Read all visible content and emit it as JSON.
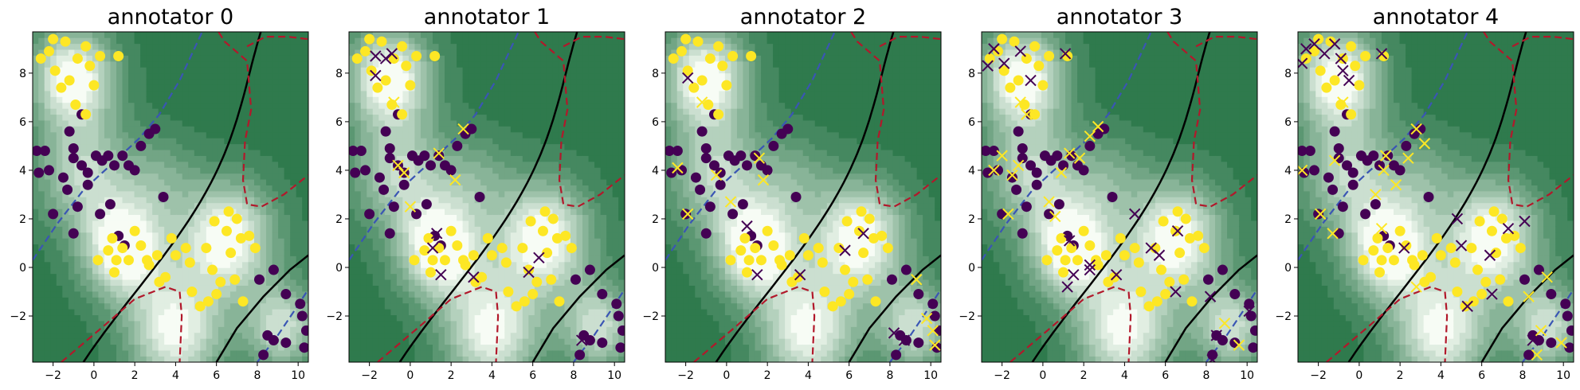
{
  "chart_data": {
    "type": "scatter",
    "x_ticks": [
      -2,
      0,
      2,
      4,
      6,
      8,
      10
    ],
    "y_ticks": [
      -2,
      0,
      2,
      4,
      6,
      8
    ],
    "xlim": [
      -3.0,
      10.5
    ],
    "ylim": [
      -3.9,
      9.7
    ],
    "grid": false,
    "colors": {
      "class0": "#440154",
      "class1": "#fde725",
      "boundary": "#000000",
      "blue_dashed": "#3a55b4",
      "red_dashed": "#b2182b",
      "contour_light": "#f7fcf5",
      "contour_dark": "#2f7a4d"
    },
    "points_class0": [
      [
        -2.8,
        4.8
      ],
      [
        -2.4,
        4.8
      ],
      [
        -2.7,
        3.9
      ],
      [
        -2.2,
        4.0
      ],
      [
        -2.0,
        2.2
      ],
      [
        -1.5,
        3.7
      ],
      [
        -1.3,
        3.2
      ],
      [
        -1.0,
        4.5
      ],
      [
        -0.6,
        4.2
      ],
      [
        -0.3,
        3.9
      ],
      [
        0.1,
        4.6
      ],
      [
        0.4,
        4.4
      ],
      [
        0.7,
        4.6
      ],
      [
        1.0,
        4.2
      ],
      [
        1.4,
        4.6
      ],
      [
        1.7,
        4.2
      ],
      [
        2.0,
        4.0
      ],
      [
        -0.8,
        2.5
      ],
      [
        -1.0,
        1.4
      ],
      [
        -1.2,
        5.6
      ],
      [
        -0.6,
        6.3
      ],
      [
        -1.0,
        4.9
      ],
      [
        2.3,
        5.0
      ],
      [
        2.7,
        5.5
      ],
      [
        3.0,
        5.7
      ],
      [
        1.2,
        1.3
      ],
      [
        1.5,
        0.9
      ],
      [
        3.4,
        2.9
      ],
      [
        0.8,
        2.6
      ],
      [
        0.3,
        2.2
      ],
      [
        -0.3,
        3.4
      ],
      [
        8.5,
        -2.8
      ],
      [
        8.8,
        -3.0
      ],
      [
        9.4,
        -3.1
      ],
      [
        10.2,
        -2.0
      ],
      [
        10.4,
        -2.6
      ],
      [
        10.1,
        -1.5
      ],
      [
        8.1,
        -0.5
      ],
      [
        8.8,
        -0.1
      ],
      [
        9.4,
        -1.1
      ],
      [
        8.3,
        -3.6
      ],
      [
        10.3,
        -3.3
      ]
    ],
    "points_class1": [
      [
        -2.6,
        8.6
      ],
      [
        -2.2,
        8.9
      ],
      [
        -1.9,
        8.1
      ],
      [
        -1.6,
        7.4
      ],
      [
        -1.2,
        7.7
      ],
      [
        -0.8,
        8.6
      ],
      [
        -0.4,
        9.1
      ],
      [
        -0.2,
        8.3
      ],
      [
        -0.9,
        6.7
      ],
      [
        -0.4,
        6.3
      ],
      [
        -1.4,
        9.3
      ],
      [
        -2.0,
        9.4
      ],
      [
        0.3,
        8.7
      ],
      [
        0.0,
        7.5
      ],
      [
        1.2,
        8.7
      ],
      [
        0.9,
        1.2
      ],
      [
        1.1,
        0.3
      ],
      [
        1.4,
        0.8
      ],
      [
        1.7,
        0.3
      ],
      [
        2.0,
        1.5
      ],
      [
        2.3,
        0.9
      ],
      [
        2.6,
        0.3
      ],
      [
        1.0,
        -0.2
      ],
      [
        0.7,
        0.7
      ],
      [
        3.1,
        0.5
      ],
      [
        3.5,
        -0.4
      ],
      [
        4.5,
        0.8
      ],
      [
        4.7,
        0.2
      ],
      [
        5.5,
        0.8
      ],
      [
        5.8,
        -0.1
      ],
      [
        4.8,
        -1.0
      ],
      [
        5.2,
        -1.6
      ],
      [
        5.6,
        -1.4
      ],
      [
        6.0,
        -1.1
      ],
      [
        6.5,
        1.5
      ],
      [
        7.0,
        2.0
      ],
      [
        7.2,
        1.2
      ],
      [
        6.7,
        0.6
      ],
      [
        6.9,
        -0.5
      ],
      [
        7.6,
        1.3
      ],
      [
        7.9,
        0.8
      ],
      [
        7.3,
        -1.4
      ],
      [
        4.0,
        0.5
      ],
      [
        5.9,
        1.9
      ],
      [
        0.2,
        0.3
      ],
      [
        2.7,
        0.1
      ],
      [
        3.2,
        -0.6
      ],
      [
        6.2,
        -0.6
      ],
      [
        6.6,
        2.3
      ],
      [
        3.8,
        1.2
      ]
    ],
    "annotators": [
      {
        "title": "annotator 0",
        "label_flips": {
          "x_on_class0": [],
          "x_on_class1": []
        }
      },
      {
        "title": "annotator 1",
        "label_flips": {
          "x_on_class0": [
            [
              -1.7,
              8.7
            ],
            [
              -1.2,
              8.6
            ],
            [
              -0.9,
              8.8
            ],
            [
              -1.7,
              7.9
            ],
            [
              1.3,
              1.4
            ],
            [
              1.1,
              0.8
            ],
            [
              3.1,
              -0.4
            ],
            [
              5.8,
              -0.2
            ],
            [
              6.3,
              0.4
            ],
            [
              1.5,
              -0.3
            ],
            [
              8.4,
              -3.0
            ]
          ],
          "x_on_class1": [
            [
              -0.8,
              6.8
            ],
            [
              -0.6,
              4.2
            ],
            [
              -0.3,
              3.9
            ],
            [
              1.4,
              4.7
            ],
            [
              2.2,
              3.6
            ],
            [
              2.6,
              5.7
            ],
            [
              0.0,
              2.5
            ]
          ]
        }
      },
      {
        "title": "annotator 2",
        "label_flips": {
          "x_on_class0": [
            [
              -1.9,
              7.8
            ],
            [
              1.0,
              1.7
            ],
            [
              1.5,
              -0.3
            ],
            [
              3.6,
              -0.3
            ],
            [
              5.8,
              0.7
            ],
            [
              6.7,
              1.4
            ],
            [
              8.2,
              -2.7
            ],
            [
              8.7,
              -3.0
            ]
          ],
          "x_on_class1": [
            [
              -2.4,
              4.1
            ],
            [
              -1.9,
              2.2
            ],
            [
              -1.2,
              6.8
            ],
            [
              0.2,
              2.7
            ],
            [
              1.8,
              3.6
            ],
            [
              1.6,
              4.5
            ],
            [
              -0.5,
              3.8
            ],
            [
              9.3,
              -0.5
            ],
            [
              9.8,
              -2.1
            ],
            [
              10.1,
              -2.6
            ],
            [
              10.2,
              -3.2
            ]
          ]
        }
      },
      {
        "title": "annotator 3",
        "label_flips": {
          "x_on_class0": [
            [
              -2.4,
              9.0
            ],
            [
              -1.9,
              8.4
            ],
            [
              -1.1,
              8.9
            ],
            [
              -0.6,
              7.7
            ],
            [
              1.1,
              8.8
            ],
            [
              -2.7,
              8.3
            ],
            [
              1.3,
              1.1
            ],
            [
              1.5,
              -0.3
            ],
            [
              1.2,
              -0.8
            ],
            [
              2.3,
              -0.1
            ],
            [
              3.6,
              -0.3
            ],
            [
              4.5,
              2.2
            ],
            [
              5.3,
              0.8
            ],
            [
              5.7,
              0.5
            ],
            [
              6.6,
              1.5
            ],
            [
              6.5,
              -1.0
            ],
            [
              8.5,
              -2.8
            ],
            [
              8.2,
              -1.2
            ],
            [
              8.3,
              -3.8
            ],
            [
              10.1,
              -1.8
            ],
            [
              2.3,
              0.1
            ]
          ],
          "x_on_class1": [
            [
              -2.4,
              4.0
            ],
            [
              -2.0,
              4.6
            ],
            [
              -1.1,
              6.8
            ],
            [
              -0.8,
              6.3
            ],
            [
              -1.5,
              3.8
            ],
            [
              -1.2,
              4.2
            ],
            [
              0.3,
              2.7
            ],
            [
              0.6,
              2.1
            ],
            [
              1.3,
              4.7
            ],
            [
              1.8,
              4.5
            ],
            [
              2.7,
              5.8
            ],
            [
              2.3,
              5.4
            ],
            [
              -1.7,
              2.2
            ],
            [
              0.9,
              3.9
            ],
            [
              9.6,
              -3.2
            ],
            [
              8.9,
              -2.3
            ]
          ]
        }
      },
      {
        "title": "annotator 4",
        "label_flips": {
          "x_on_class0": [
            [
              -2.6,
              9.0
            ],
            [
              -2.2,
              9.2
            ],
            [
              -1.7,
              8.8
            ],
            [
              -1.2,
              9.2
            ],
            [
              -0.9,
              8.6
            ],
            [
              -0.8,
              8.1
            ],
            [
              -0.5,
              7.7
            ],
            [
              -2.8,
              8.4
            ],
            [
              1.1,
              8.8
            ],
            [
              4.8,
              2.0
            ],
            [
              5.0,
              0.9
            ],
            [
              5.3,
              -1.6
            ],
            [
              6.4,
              0.5
            ],
            [
              7.3,
              1.6
            ],
            [
              6.5,
              -1.1
            ],
            [
              8.1,
              1.9
            ],
            [
              8.5,
              -3.0
            ],
            [
              2.2,
              0.8
            ]
          ],
          "x_on_class1": [
            [
              -2.8,
              4.0
            ],
            [
              -1.9,
              2.2
            ],
            [
              -1.3,
              1.4
            ],
            [
              -0.8,
              6.8
            ],
            [
              -1.2,
              4.4
            ],
            [
              0.8,
              3.0
            ],
            [
              1.2,
              4.0
            ],
            [
              1.3,
              4.6
            ],
            [
              1.8,
              3.4
            ],
            [
              2.8,
              5.7
            ],
            [
              2.4,
              4.5
            ],
            [
              3.2,
              5.1
            ],
            [
              1.1,
              1.6
            ],
            [
              2.8,
              -0.8
            ],
            [
              8.3,
              -1.2
            ],
            [
              8.9,
              -2.6
            ],
            [
              8.7,
              -3.6
            ],
            [
              9.9,
              -3.1
            ],
            [
              9.2,
              -0.4
            ]
          ]
        }
      }
    ]
  }
}
